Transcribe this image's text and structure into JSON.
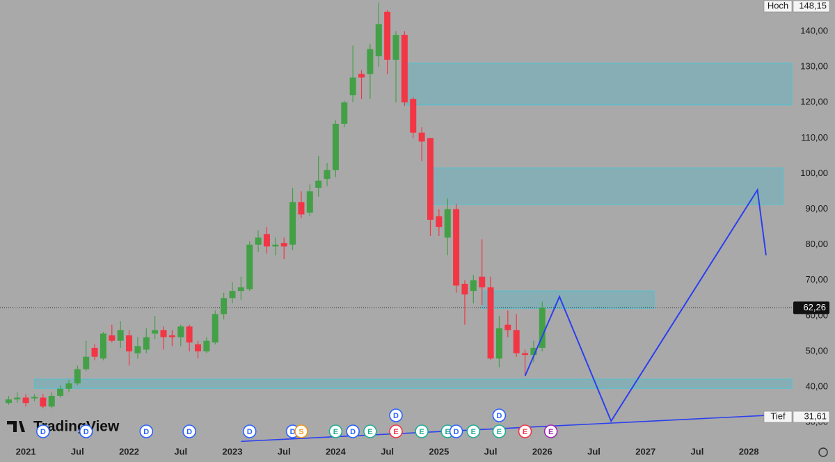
{
  "chart_data": {
    "type": "candlestick",
    "x": [
      "2020-11",
      "2020-12",
      "2021-01",
      "2021-02",
      "2021-03",
      "2021-04",
      "2021-05",
      "2021-06",
      "2021-07",
      "2021-08",
      "2021-09",
      "2021-10",
      "2021-11",
      "2021-12",
      "2022-01",
      "2022-02",
      "2022-03",
      "2022-04",
      "2022-05",
      "2022-06",
      "2022-07",
      "2022-08",
      "2022-09",
      "2022-10",
      "2022-11",
      "2022-12",
      "2023-01",
      "2023-02",
      "2023-03",
      "2023-04",
      "2023-05",
      "2023-06",
      "2023-07",
      "2023-08",
      "2023-09",
      "2023-10",
      "2023-11",
      "2023-12",
      "2024-01",
      "2024-02",
      "2024-03",
      "2024-04",
      "2024-05",
      "2024-06",
      "2024-07",
      "2024-08",
      "2024-09",
      "2024-10",
      "2024-11",
      "2024-12",
      "2025-01",
      "2025-02",
      "2025-03",
      "2025-04",
      "2025-05",
      "2025-06",
      "2025-07",
      "2025-08",
      "2025-09",
      "2025-10",
      "2025-11",
      "2025-12",
      "2026-01"
    ],
    "open": [
      35.5,
      36.5,
      37,
      36.8,
      37,
      34.5,
      37.5,
      39.5,
      41,
      45,
      51,
      48,
      54.5,
      53,
      54.5,
      49.5,
      50.5,
      55,
      56,
      54.5,
      54,
      57,
      52,
      50,
      52.5,
      60.5,
      65,
      67,
      67.5,
      80,
      83,
      79.5,
      80.5,
      80,
      92,
      89,
      96,
      98.5,
      101,
      114,
      122,
      128,
      128,
      133,
      145.5,
      132,
      139,
      121,
      111.5,
      110,
      88,
      82,
      90,
      69,
      67,
      71,
      68,
      48,
      57.5,
      56,
      49.5,
      49,
      51
    ],
    "high": [
      37.5,
      38.5,
      38,
      38,
      38,
      38.5,
      40.5,
      42,
      46,
      53,
      52,
      55.5,
      57.5,
      58.5,
      56,
      54,
      56.5,
      60,
      57,
      56,
      57.5,
      57.5,
      53,
      54,
      61.5,
      66.5,
      69.5,
      71,
      81,
      84,
      85,
      82,
      82,
      96,
      95,
      97,
      105,
      103,
      115,
      120.5,
      136,
      129,
      136.5,
      148.15,
      146,
      140,
      140,
      121.5,
      113,
      110,
      90,
      93,
      91.5,
      70,
      71.5,
      81.5,
      71,
      60,
      61.5,
      60.5,
      50.5,
      53,
      64
    ],
    "low": [
      35,
      35.5,
      34.5,
      36,
      34,
      34,
      37,
      38.5,
      40.5,
      44.5,
      47.5,
      47.5,
      52.5,
      51,
      46,
      48,
      49.5,
      53.5,
      50.5,
      51.5,
      51.5,
      50,
      48,
      49.5,
      52,
      59,
      63.5,
      64.5,
      67,
      78,
      77.5,
      77,
      76,
      78.5,
      87.5,
      88,
      93.5,
      96.5,
      99,
      113,
      120,
      121,
      121,
      130,
      128,
      120,
      119,
      110,
      103.5,
      82.5,
      82.5,
      77,
      66.5,
      57.5,
      63.5,
      63,
      47.5,
      45.5,
      54,
      48.5,
      43.5,
      47,
      50
    ],
    "close": [
      36.5,
      37,
      35.5,
      37.2,
      34.5,
      37.5,
      39.5,
      41,
      45,
      48.5,
      48.5,
      55,
      53,
      56,
      50,
      51.5,
      54,
      56,
      54,
      54,
      57,
      52.5,
      50,
      53,
      60.5,
      65,
      67,
      68,
      80,
      82,
      79.5,
      80,
      79.5,
      92,
      88.5,
      95,
      98,
      101,
      114,
      120,
      127,
      127,
      135,
      142,
      132,
      139,
      120,
      111.5,
      109,
      87,
      85,
      90,
      68.5,
      66,
      70,
      68,
      48,
      56.5,
      56,
      49.5,
      49,
      51,
      62.26
    ],
    "up_color": "#43a047",
    "down_color": "#f23645",
    "xlim": [
      "2020-10",
      "2028-06"
    ],
    "xticks": [
      {
        "value": "2021-01",
        "label": "2021"
      },
      {
        "value": "2021-07",
        "label": "Jul"
      },
      {
        "value": "2022-01",
        "label": "2022"
      },
      {
        "value": "2022-07",
        "label": "Jul"
      },
      {
        "value": "2023-01",
        "label": "2023"
      },
      {
        "value": "2023-07",
        "label": "Jul"
      },
      {
        "value": "2024-01",
        "label": "2024"
      },
      {
        "value": "2024-07",
        "label": "Jul"
      },
      {
        "value": "2025-01",
        "label": "2025"
      },
      {
        "value": "2025-07",
        "label": "Jul"
      },
      {
        "value": "2026-01",
        "label": "2026"
      },
      {
        "value": "2026-07",
        "label": "Jul"
      },
      {
        "value": "2027-01",
        "label": "2027"
      },
      {
        "value": "2027-07",
        "label": "Jul"
      },
      {
        "value": "2028-01",
        "label": "2028"
      }
    ],
    "ylim": [
      23.6,
      148.8
    ],
    "yticks": [
      {
        "value": 30,
        "label": "30,00"
      },
      {
        "value": 40,
        "label": "40,00"
      },
      {
        "value": 50,
        "label": "50,00"
      },
      {
        "value": 60,
        "label": "60,00"
      },
      {
        "value": 70,
        "label": "70,00"
      },
      {
        "value": 80,
        "label": "80,00"
      },
      {
        "value": 90,
        "label": "90,00"
      },
      {
        "value": 100,
        "label": "100,00"
      },
      {
        "value": 110,
        "label": "110,00"
      },
      {
        "value": 120,
        "label": "120,00"
      },
      {
        "value": 130,
        "label": "130,00"
      },
      {
        "value": 140,
        "label": "140,00"
      }
    ],
    "grid": false,
    "zones": [
      {
        "x": [
          "2024-09",
          "2028-06"
        ],
        "y": [
          119.3,
          131
        ]
      },
      {
        "x": [
          "2024-12",
          "2028-05"
        ],
        "y": [
          91.3,
          101.6
        ]
      },
      {
        "x": [
          "2025-06",
          "2027-02"
        ],
        "y": [
          62.1,
          67
        ]
      },
      {
        "x": [
          "2021-02",
          "2028-06"
        ],
        "y": [
          39.6,
          42.2
        ]
      }
    ],
    "zone_color": "#5ab4c0",
    "projection": {
      "x": [
        "2025-11",
        "2026-03",
        "2026-09",
        "2028-02",
        "2028-03"
      ],
      "values": [
        43.1,
        65.4,
        30.4,
        95.4,
        77
      ],
      "color": "#2a3ff0"
    },
    "trendline": {
      "x": [
        "2023-02",
        "2028-03"
      ],
      "values": [
        24.7,
        32
      ],
      "color": "#2a3ff0"
    },
    "last_price": {
      "value": 62.26,
      "value_label": "62,26"
    },
    "markers": [
      {
        "name": "Hoch",
        "value": 148.15,
        "value_label": "148,15"
      },
      {
        "name": "Tief",
        "value": 31.61,
        "value_label": "31,61"
      }
    ],
    "events": [
      {
        "label": "D",
        "date": "2021-03",
        "color": "#2962ff"
      },
      {
        "label": "D",
        "date": "2021-08",
        "color": "#2962ff"
      },
      {
        "label": "D",
        "date": "2022-03",
        "color": "#2962ff"
      },
      {
        "label": "D",
        "date": "2022-08",
        "color": "#2962ff"
      },
      {
        "label": "D",
        "date": "2023-03",
        "color": "#2962ff"
      },
      {
        "label": "D",
        "date": "2023-08",
        "color": "#2962ff"
      },
      {
        "label": "S",
        "date": "2023-09",
        "color": "#f09a1a"
      },
      {
        "label": "E",
        "date": "2024-01",
        "color": "#22ab94"
      },
      {
        "label": "D",
        "date": "2024-03",
        "color": "#2962ff"
      },
      {
        "label": "E",
        "date": "2024-05",
        "color": "#22ab94"
      },
      {
        "label": "E",
        "date": "2024-08",
        "color": "#f23645"
      },
      {
        "label": "D",
        "date": "2024-08",
        "color": "#2962ff"
      },
      {
        "label": "E",
        "date": "2024-11",
        "color": "#22ab94"
      },
      {
        "label": "E",
        "date": "2025-02",
        "color": "#22ab94"
      },
      {
        "label": "D",
        "date": "2025-03",
        "color": "#2962ff"
      },
      {
        "label": "E",
        "date": "2025-05",
        "color": "#22ab94"
      },
      {
        "label": "E",
        "date": "2025-08",
        "color": "#22ab94"
      },
      {
        "label": "D",
        "date": "2025-08",
        "color": "#2962ff"
      },
      {
        "label": "E",
        "date": "2025-11",
        "color": "#f23645"
      },
      {
        "label": "E",
        "date": "2026-02",
        "color": "#9c27b0"
      }
    ],
    "logo": "TradingView"
  }
}
